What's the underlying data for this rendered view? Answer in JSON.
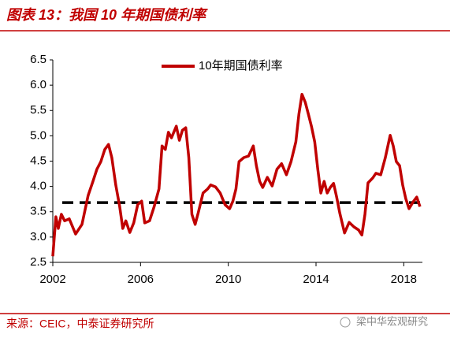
{
  "chart_data": {
    "type": "line",
    "title": "图表 13：我国 10 年期国债利率",
    "source": "来源：CEIC，中泰证券研究所",
    "watermark": "梁中华宏观研究",
    "x": [
      2002,
      2002.14,
      2002.25,
      2002.39,
      2002.54,
      2002.75,
      2003.04,
      2003.33,
      2003.61,
      2003.83,
      2004.01,
      2004.19,
      2004.37,
      2004.54,
      2004.69,
      2004.87,
      2005.05,
      2005.19,
      2005.33,
      2005.51,
      2005.69,
      2005.87,
      2006.05,
      2006.19,
      2006.41,
      2006.62,
      2006.84,
      2006.98,
      2007.13,
      2007.27,
      2007.41,
      2007.63,
      2007.77,
      2007.91,
      2008.06,
      2008.2,
      2008.34,
      2008.49,
      2008.63,
      2008.85,
      2009.06,
      2009.2,
      2009.42,
      2009.63,
      2009.85,
      2010.06,
      2010.21,
      2010.35,
      2010.49,
      2010.71,
      2010.92,
      2011.14,
      2011.28,
      2011.43,
      2011.57,
      2011.78,
      2012,
      2012.22,
      2012.43,
      2012.65,
      2012.86,
      2013.08,
      2013.22,
      2013.36,
      2013.51,
      2013.65,
      2013.79,
      2013.94,
      2014.08,
      2014.22,
      2014.37,
      2014.51,
      2014.65,
      2014.8,
      2014.94,
      2015.08,
      2015.3,
      2015.51,
      2015.73,
      2015.94,
      2016.09,
      2016.23,
      2016.37,
      2016.59,
      2016.73,
      2016.95,
      2017.16,
      2017.38,
      2017.52,
      2017.66,
      2017.81,
      2017.95,
      2018.09,
      2018.24,
      2018.45,
      2018.59,
      2018.74
    ],
    "series": [
      {
        "name": "10年期国债利率",
        "color": "#c00000",
        "values": [
          2.62,
          3.4,
          3.17,
          3.45,
          3.32,
          3.36,
          3.06,
          3.25,
          3.82,
          4.1,
          4.34,
          4.49,
          4.73,
          4.83,
          4.57,
          4.03,
          3.6,
          3.17,
          3.32,
          3.09,
          3.28,
          3.64,
          3.71,
          3.28,
          3.32,
          3.6,
          3.95,
          4.8,
          4.73,
          5.07,
          4.96,
          5.19,
          4.91,
          5.11,
          5.16,
          4.57,
          3.45,
          3.25,
          3.48,
          3.87,
          3.95,
          4.03,
          3.99,
          3.87,
          3.64,
          3.56,
          3.71,
          3.95,
          4.49,
          4.57,
          4.6,
          4.8,
          4.41,
          4.1,
          3.98,
          4.18,
          4.01,
          4.34,
          4.45,
          4.23,
          4.49,
          4.88,
          5.43,
          5.82,
          5.66,
          5.43,
          5.19,
          4.88,
          4.34,
          3.87,
          4.1,
          3.87,
          3.98,
          4.06,
          3.79,
          3.48,
          3.08,
          3.29,
          3.2,
          3.14,
          3.04,
          3.45,
          4.07,
          4.17,
          4.26,
          4.23,
          4.57,
          5.01,
          4.8,
          4.49,
          4.41,
          4.03,
          3.76,
          3.56,
          3.71,
          3.79,
          3.6
        ]
      }
    ],
    "reference_line": {
      "value": 3.68,
      "color": "#000000"
    },
    "xlim": [
      2002,
      2018.85
    ],
    "xticks": [
      2002,
      2006,
      2010,
      2014,
      2018
    ],
    "ylim": [
      2.5,
      6.5
    ],
    "yticks": [
      2.5,
      {
        "value": 3,
        "label": "3.0"
      },
      3.5,
      {
        "value": 4,
        "label": "4.0"
      },
      4.5,
      {
        "value": 5,
        "label": "5.0"
      },
      5.5,
      {
        "value": 6,
        "label": "6.0"
      },
      6.5
    ]
  }
}
